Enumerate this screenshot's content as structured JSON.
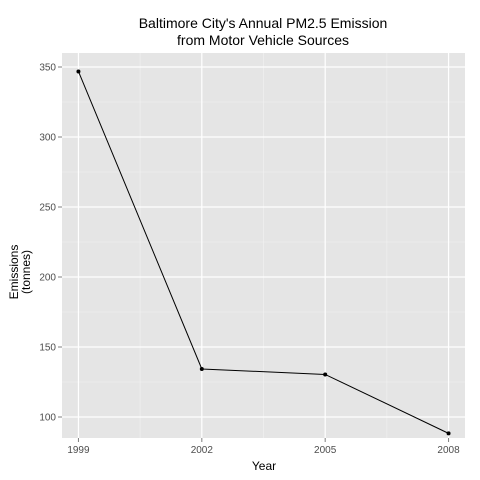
{
  "chart_data": {
    "type": "line",
    "title_lines": [
      "Baltimore City's Annual PM2.5 Emission",
      "from Motor Vehicle Sources"
    ],
    "xlabel": "Year",
    "ylabel_lines": [
      "Emissions",
      "(tonnes)"
    ],
    "x": [
      1999,
      2002,
      2005,
      2008
    ],
    "x_ticks": [
      "1999",
      "2002",
      "2005",
      "2008"
    ],
    "y_ticks": [
      "100",
      "150",
      "200",
      "250",
      "300",
      "350"
    ],
    "xlim": [
      1998.6,
      2008.4
    ],
    "ylim": [
      85,
      360
    ],
    "series": [
      {
        "values": [
          346.8,
          134.3,
          130.4,
          88.3
        ]
      }
    ],
    "grid": true,
    "colors": {
      "panel": "#e5e5e5",
      "grid_major": "#ffffff",
      "grid_minor": "#f2f2f2",
      "line": "#000000",
      "point": "#000000"
    }
  }
}
